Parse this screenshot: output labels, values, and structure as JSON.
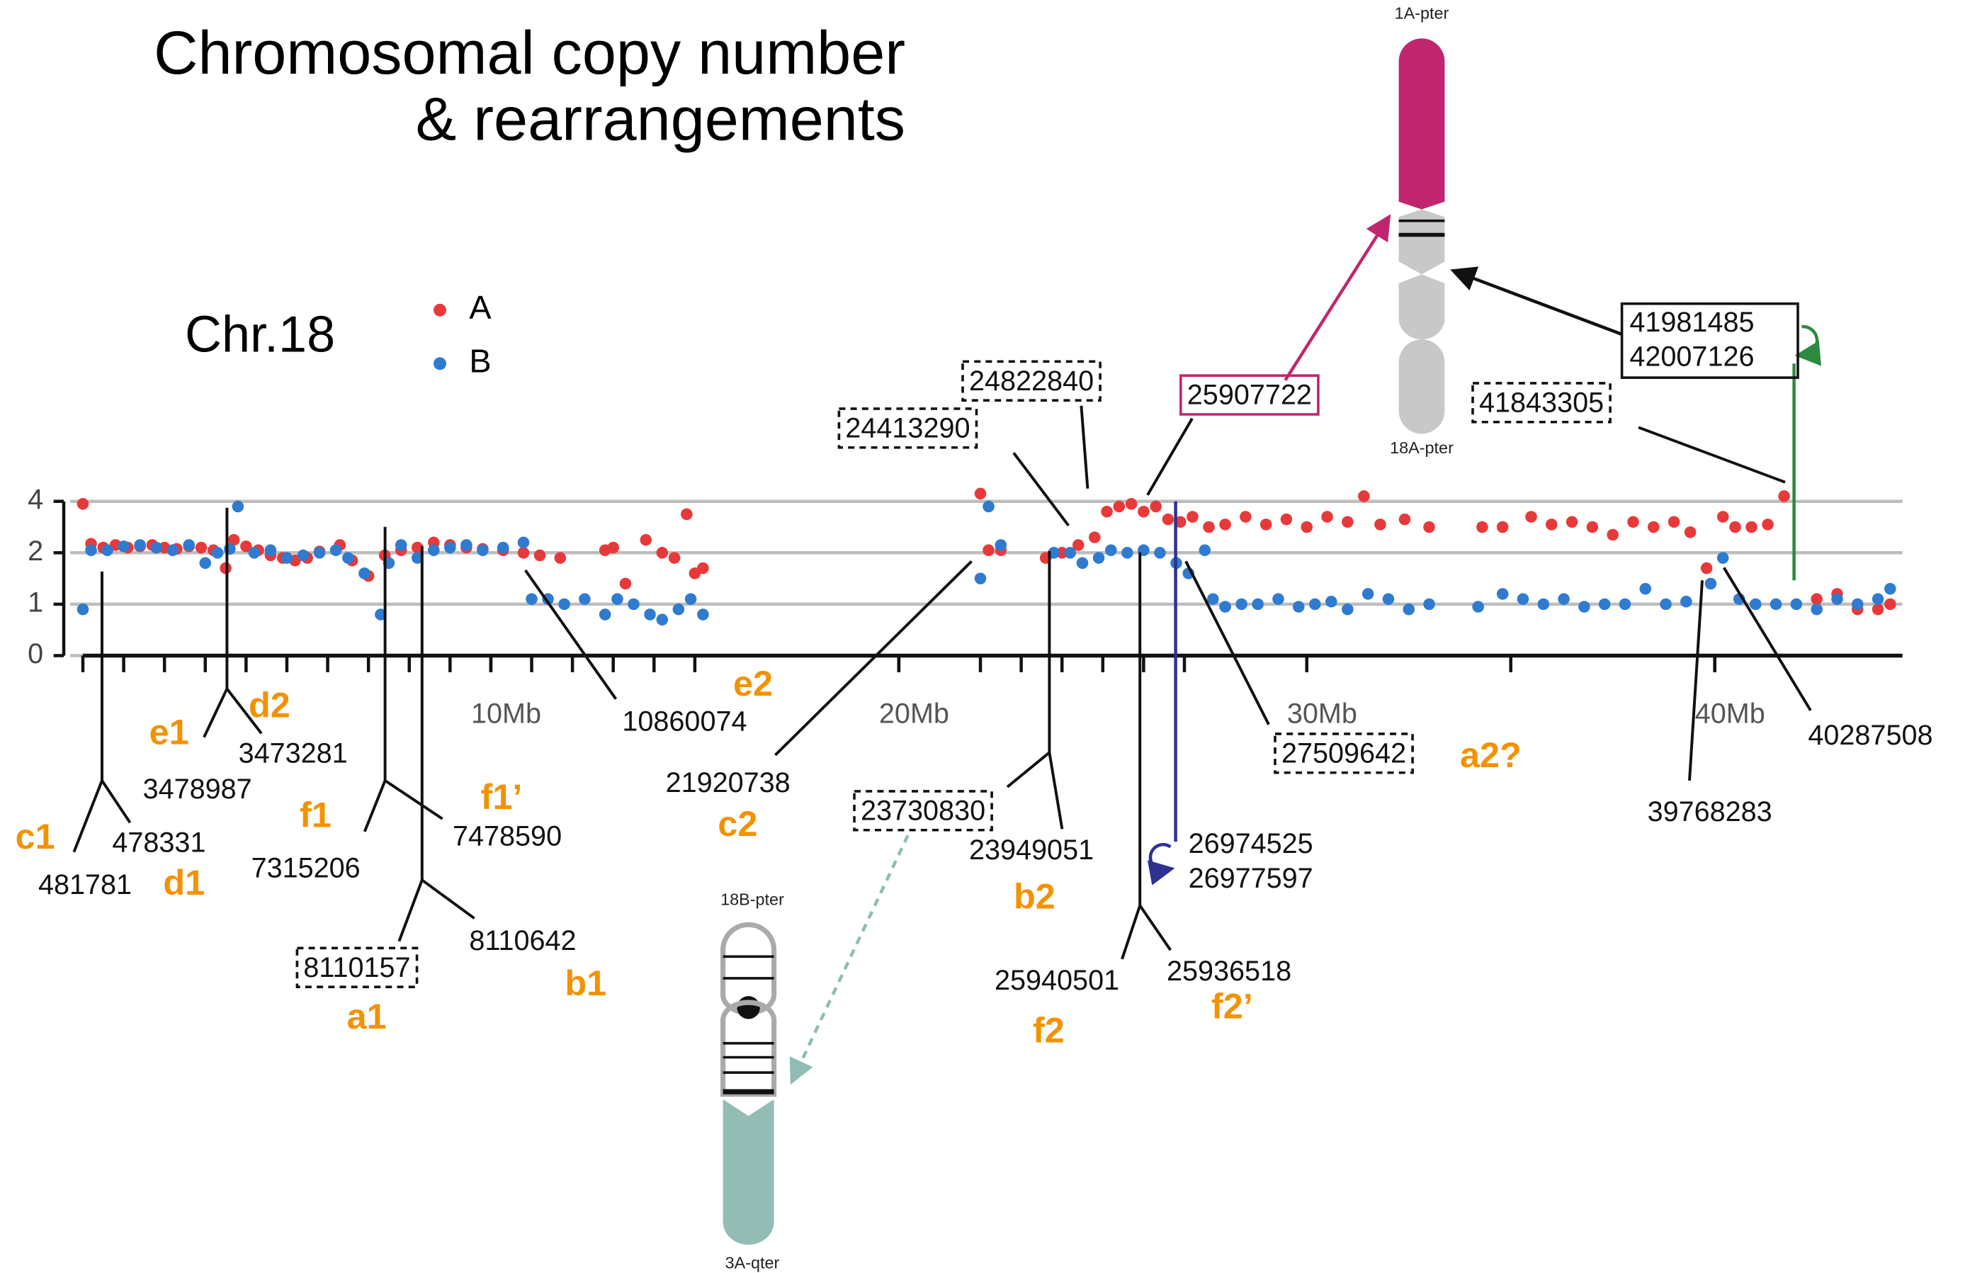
{
  "chart_data": {
    "type": "scatter",
    "title": [
      "Chromosomal copy number",
      "& rearrangements"
    ],
    "subtitle": "Chr.18",
    "xlim": [
      0,
      44.6
    ],
    "xticks": [
      {
        "value": 10,
        "label": "10Mb"
      },
      {
        "value": 20,
        "label": "20Mb"
      },
      {
        "value": 30,
        "label": "30Mb"
      },
      {
        "value": 40,
        "label": "40Mb"
      }
    ],
    "xminorticks": [
      0,
      1,
      2,
      3,
      4,
      5,
      6,
      7,
      8,
      9,
      10,
      11,
      12,
      13,
      14,
      15,
      20,
      22,
      23,
      24,
      25,
      26,
      27,
      30,
      35,
      40
    ],
    "ylim": [
      0,
      4
    ],
    "yticks": [
      0,
      1,
      2,
      4
    ],
    "yscale": "tick-spaced",
    "grid": true,
    "series": [
      {
        "name": "A",
        "color": "#e8393a",
        "x": [
          0,
          0.2,
          0.5,
          0.8,
          1.1,
          1.4,
          1.7,
          2.0,
          2.3,
          2.6,
          2.9,
          3.2,
          3.5,
          3.7,
          4.0,
          4.3,
          4.6,
          4.9,
          5.2,
          5.5,
          5.8,
          6.3,
          6.6,
          7.0,
          7.4,
          7.8,
          8.2,
          8.6,
          9.0,
          9.4,
          9.8,
          10.3,
          10.8,
          11.2,
          11.7,
          12.8,
          13.0,
          13.3,
          13.8,
          14.2,
          14.5,
          14.8,
          15.0,
          15.2,
          22.0,
          22.2,
          22.5,
          23.6,
          24.0,
          24.4,
          24.8,
          25.1,
          25.4,
          25.7,
          26.0,
          26.3,
          26.6,
          26.9,
          27.2,
          27.6,
          28.0,
          28.5,
          29.0,
          29.5,
          30.0,
          30.5,
          31.0,
          31.4,
          31.8,
          32.4,
          33.0,
          34.3,
          34.8,
          35.5,
          36.0,
          36.5,
          37.0,
          37.5,
          38.0,
          38.5,
          39.0,
          39.4,
          39.8,
          40.2,
          40.5,
          40.9,
          41.3,
          41.7,
          42.5,
          43.0,
          43.5,
          44.0,
          44.3
        ],
        "values": [
          3.9,
          2.35,
          2.2,
          2.3,
          2.2,
          2.25,
          2.3,
          2.2,
          2.15,
          2.25,
          2.2,
          2.1,
          1.7,
          2.5,
          2.25,
          2.1,
          1.95,
          1.9,
          1.85,
          1.9,
          2.05,
          2.3,
          1.85,
          1.55,
          1.95,
          2.1,
          2.2,
          2.4,
          2.3,
          2.2,
          2.15,
          2.1,
          2.0,
          1.95,
          1.9,
          2.1,
          2.2,
          1.4,
          2.5,
          2.0,
          1.9,
          3.5,
          1.6,
          1.7,
          4.3,
          2.1,
          2.1,
          1.9,
          2.0,
          2.3,
          2.6,
          3.6,
          3.8,
          3.9,
          3.6,
          3.8,
          3.3,
          3.2,
          3.4,
          3.0,
          3.1,
          3.4,
          3.1,
          3.3,
          3.0,
          3.4,
          3.2,
          4.2,
          3.1,
          3.3,
          3.0,
          3.0,
          3.0,
          3.4,
          3.1,
          3.2,
          3.0,
          2.7,
          3.2,
          3.0,
          3.2,
          2.8,
          1.7,
          3.4,
          3.0,
          3.0,
          3.1,
          4.2,
          1.1,
          1.2,
          0.9,
          0.9,
          1.0
        ]
      },
      {
        "name": "B",
        "color": "#2f7bd0",
        "x": [
          0,
          0.2,
          0.6,
          1.0,
          1.4,
          1.8,
          2.2,
          2.6,
          3.0,
          3.3,
          3.6,
          3.8,
          4.2,
          4.6,
          5.0,
          5.4,
          5.8,
          6.2,
          6.5,
          6.9,
          7.3,
          7.5,
          7.8,
          8.2,
          8.6,
          9.0,
          9.4,
          9.8,
          10.3,
          10.8,
          11.0,
          11.4,
          11.8,
          12.3,
          12.8,
          13.1,
          13.5,
          13.9,
          14.2,
          14.6,
          14.9,
          15.2,
          22.0,
          22.2,
          22.5,
          23.8,
          24.2,
          24.5,
          24.9,
          25.2,
          25.6,
          26.0,
          26.4,
          26.8,
          27.1,
          27.5,
          27.7,
          28.0,
          28.4,
          28.8,
          29.3,
          29.8,
          30.2,
          30.6,
          31.0,
          31.5,
          32.0,
          32.5,
          33.0,
          34.2,
          34.8,
          35.3,
          35.8,
          36.3,
          36.8,
          37.3,
          37.8,
          38.3,
          38.8,
          39.3,
          39.9,
          40.2,
          40.6,
          41.0,
          41.5,
          42.0,
          42.5,
          43.0,
          43.5,
          44.0,
          44.3
        ],
        "values": [
          0.9,
          2.1,
          2.1,
          2.25,
          2.3,
          2.2,
          2.1,
          2.3,
          1.8,
          2.0,
          2.15,
          3.8,
          2.0,
          2.1,
          1.9,
          1.95,
          2.0,
          2.1,
          1.9,
          1.6,
          0.8,
          1.8,
          2.3,
          1.9,
          2.1,
          2.2,
          2.3,
          2.1,
          2.2,
          2.4,
          1.1,
          1.1,
          1.0,
          1.1,
          0.8,
          1.1,
          1.0,
          0.8,
          0.7,
          0.9,
          1.1,
          0.8,
          1.5,
          3.8,
          2.3,
          2.0,
          2.0,
          1.8,
          1.9,
          2.1,
          2.0,
          2.1,
          2.0,
          1.8,
          1.6,
          2.1,
          1.1,
          0.95,
          1.0,
          1.0,
          1.1,
          0.95,
          1.0,
          1.05,
          0.9,
          1.2,
          1.1,
          0.9,
          1.0,
          0.95,
          1.2,
          1.1,
          1.0,
          1.1,
          0.95,
          1.0,
          1.0,
          1.3,
          1.0,
          1.05,
          1.4,
          1.9,
          1.1,
          1.0,
          1.0,
          1.0,
          0.9,
          1.1,
          1.0,
          1.1,
          1.3
        ]
      }
    ],
    "annotations": [
      "10860074",
      "3478987",
      "3473281",
      "478331",
      "481781",
      "7315206",
      "7478590",
      "8110157",
      "8110642",
      "21920738",
      "23730830",
      "23949051",
      "24413290",
      "24822840",
      "25907722",
      "26974525",
      "26977597",
      "25940501",
      "25936518",
      "27509642",
      "41843305",
      "41981485",
      "42007126",
      "39768283",
      "40287508"
    ],
    "breakpoint_labels": [
      "c1",
      "d1",
      "e1",
      "d2",
      "f1",
      "f1’",
      "a1",
      "b1",
      "e2",
      "c2",
      "b2",
      "f2",
      "f2’",
      "a2?"
    ],
    "ideogram_labels": [
      "1A-pter",
      "18A-pter",
      "18B-pter",
      "3A-qter"
    ]
  }
}
